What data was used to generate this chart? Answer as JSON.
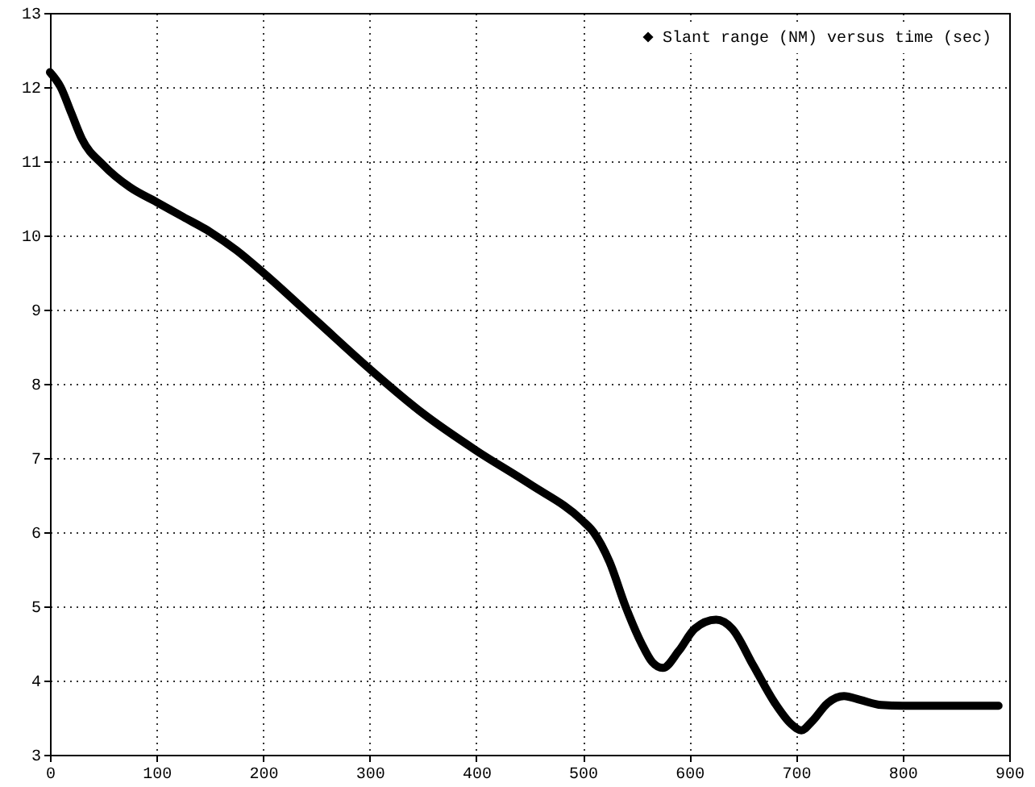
{
  "chart_data": {
    "type": "line",
    "x": [
      0,
      10,
      20,
      30,
      50,
      75,
      100,
      125,
      150,
      175,
      200,
      250,
      300,
      350,
      400,
      450,
      500,
      510,
      525,
      540,
      555,
      565,
      575,
      590,
      605,
      625,
      640,
      660,
      680,
      695,
      705,
      715,
      730,
      745,
      760,
      780,
      800,
      850,
      890
    ],
    "series": [
      {
        "name": "Slant range (NM) versus time (sec)",
        "color": "#000000",
        "values": [
          12.2,
          12.0,
          11.65,
          11.3,
          10.95,
          10.65,
          10.45,
          10.25,
          10.05,
          9.8,
          9.5,
          8.85,
          8.2,
          7.6,
          7.1,
          6.65,
          6.15,
          6.0,
          5.6,
          5.0,
          4.5,
          4.25,
          4.17,
          4.4,
          4.7,
          4.82,
          4.7,
          4.2,
          3.7,
          3.42,
          3.33,
          3.45,
          3.7,
          3.79,
          3.74,
          3.67,
          3.66,
          3.66,
          3.66
        ]
      }
    ],
    "xlim": [
      0,
      900
    ],
    "xticks": [
      0,
      100,
      200,
      300,
      400,
      500,
      600,
      700,
      800,
      900
    ],
    "ylim": [
      3,
      13
    ],
    "yticks": [
      3,
      4,
      5,
      6,
      7,
      8,
      9,
      10,
      11,
      12,
      13
    ],
    "grid": true,
    "legend": "top right",
    "marker": "diamond",
    "line_style": "solid"
  }
}
